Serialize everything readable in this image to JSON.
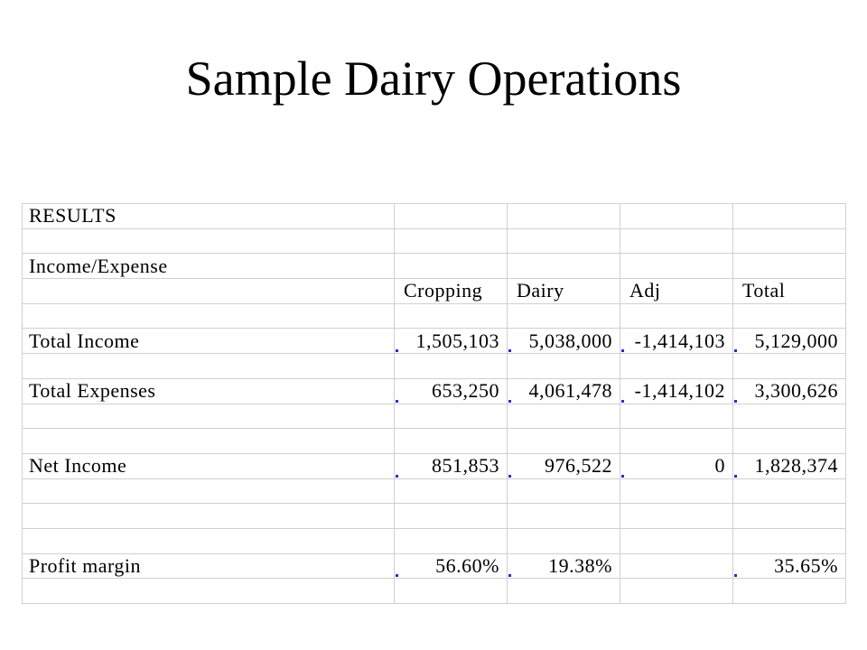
{
  "title": "Sample Dairy Operations",
  "colors": {
    "grid_line": "#d0d0d0",
    "cell_marker": "#1c2fd8",
    "text": "#000000"
  },
  "sheet": {
    "rows": [
      {
        "label": "RESULTS",
        "values": [
          "",
          "",
          "",
          ""
        ],
        "markers": [
          false,
          false,
          false,
          false
        ]
      },
      {
        "label": "",
        "values": [
          "",
          "",
          "",
          ""
        ],
        "markers": [
          false,
          false,
          false,
          false
        ]
      },
      {
        "label": "Income/Expense",
        "values": [
          "",
          "",
          "",
          ""
        ],
        "markers": [
          false,
          false,
          false,
          false
        ]
      },
      {
        "label": "",
        "values": [
          "Cropping",
          "Dairy",
          "Adj",
          "Total"
        ],
        "markers": [
          false,
          false,
          false,
          false
        ],
        "header": true
      },
      {
        "label": "",
        "values": [
          "",
          "",
          "",
          ""
        ],
        "markers": [
          false,
          false,
          false,
          false
        ]
      },
      {
        "label": "Total Income",
        "values": [
          "1,505,103",
          "5,038,000",
          "-1,414,103",
          "5,129,000"
        ],
        "markers": [
          true,
          true,
          true,
          true
        ]
      },
      {
        "label": "",
        "values": [
          "",
          "",
          "",
          ""
        ],
        "markers": [
          false,
          false,
          false,
          false
        ]
      },
      {
        "label": "Total Expenses",
        "values": [
          "653,250",
          "4,061,478",
          "-1,414,102",
          "3,300,626"
        ],
        "markers": [
          true,
          true,
          true,
          true
        ]
      },
      {
        "label": "",
        "values": [
          "",
          "",
          "",
          ""
        ],
        "markers": [
          false,
          false,
          false,
          false
        ]
      },
      {
        "label": "",
        "values": [
          "",
          "",
          "",
          ""
        ],
        "markers": [
          false,
          false,
          false,
          false
        ]
      },
      {
        "label": "Net Income",
        "values": [
          "851,853",
          "976,522",
          "0",
          "1,828,374"
        ],
        "markers": [
          true,
          true,
          true,
          true
        ]
      },
      {
        "label": "",
        "values": [
          "",
          "",
          "",
          ""
        ],
        "markers": [
          false,
          false,
          false,
          false
        ]
      },
      {
        "label": "",
        "values": [
          "",
          "",
          "",
          ""
        ],
        "markers": [
          false,
          false,
          false,
          false
        ]
      },
      {
        "label": "",
        "values": [
          "",
          "",
          "",
          ""
        ],
        "markers": [
          false,
          false,
          false,
          false
        ]
      },
      {
        "label": "Profit margin",
        "values": [
          "56.60%",
          "19.38%",
          "",
          "35.65%"
        ],
        "markers": [
          true,
          true,
          false,
          true
        ]
      },
      {
        "label": "",
        "values": [
          "",
          "",
          "",
          ""
        ],
        "markers": [
          false,
          false,
          false,
          false
        ]
      }
    ]
  }
}
